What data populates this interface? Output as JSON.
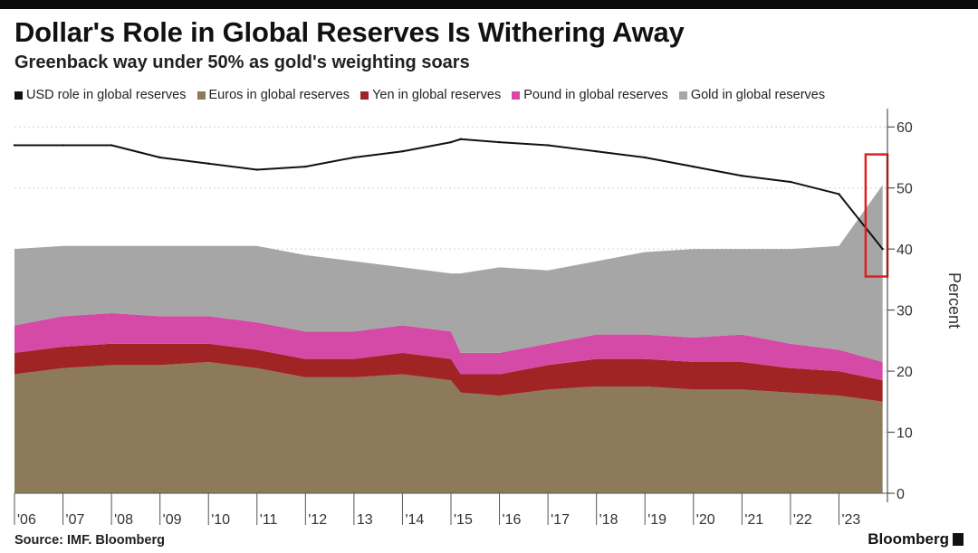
{
  "title": "Dollar's Role in Global Reserves Is Withering Away",
  "subtitle": "Greenback way under 50% as gold's weighting soars",
  "source": "Source: IMF. Bloomberg",
  "brand": "Bloomberg",
  "chart_data": {
    "type": "area",
    "ylabel": "Percent",
    "ylim": [
      0,
      63
    ],
    "yticks": [
      0,
      10,
      20,
      30,
      40,
      50,
      60
    ],
    "xlim": [
      2006.0,
      2024.0
    ],
    "x_tick_labels": [
      {
        "year": 2006.0,
        "label": "'06"
      },
      {
        "year": 2007.0,
        "label": "'07"
      },
      {
        "year": 2008.0,
        "label": "'08"
      },
      {
        "year": 2009.0,
        "label": "'09"
      },
      {
        "year": 2010.0,
        "label": "'10"
      },
      {
        "year": 2011.0,
        "label": "'11"
      },
      {
        "year": 2012.0,
        "label": "'12"
      },
      {
        "year": 2013.0,
        "label": "13"
      },
      {
        "year": 2014.0,
        "label": "'14"
      },
      {
        "year": 2015.0,
        "label": "'15"
      },
      {
        "year": 2016.0,
        "label": "'16"
      },
      {
        "year": 2017.0,
        "label": "'17"
      },
      {
        "year": 2018.0,
        "label": "'18"
      },
      {
        "year": 2019.0,
        "label": "'19"
      },
      {
        "year": 2020.0,
        "label": "'20"
      },
      {
        "year": 2021.0,
        "label": "'21"
      },
      {
        "year": 2022.0,
        "label": "'22"
      },
      {
        "year": 2023.0,
        "label": "'23"
      }
    ],
    "grid": true,
    "legend_position": "top",
    "x": [
      2006.0,
      2007.0,
      2008.0,
      2009.0,
      2010.0,
      2011.0,
      2012.0,
      2013.0,
      2014.0,
      2015.0,
      2015.2,
      2016.0,
      2017.0,
      2018.0,
      2019.0,
      2020.0,
      2021.0,
      2022.0,
      2023.0,
      2023.9
    ],
    "series": [
      {
        "name": "Euros in global reserves",
        "kind": "stacked_area",
        "color": "#8c7a5b",
        "values": [
          19.5,
          20.5,
          21,
          21,
          21.5,
          20.5,
          19,
          19,
          19.5,
          18.5,
          16.5,
          16,
          17,
          17.5,
          17.5,
          17,
          17,
          16.5,
          16,
          15
        ]
      },
      {
        "name": "Yen in global reserves",
        "kind": "stacked_area",
        "color": "#a02424",
        "values": [
          3.5,
          3.5,
          3.5,
          3.5,
          3,
          3,
          3,
          3,
          3.5,
          3.5,
          3,
          3.5,
          4,
          4.5,
          4.5,
          4.5,
          4.5,
          4,
          4,
          3.5
        ]
      },
      {
        "name": "Pound in global reserves",
        "kind": "stacked_area",
        "color": "#d44aa6",
        "values": [
          4.5,
          5,
          5,
          4.5,
          4.5,
          4.5,
          4.5,
          4.5,
          4.5,
          4.5,
          3.5,
          3.5,
          3.5,
          4,
          4,
          4,
          4.5,
          4,
          3.5,
          3
        ]
      },
      {
        "name": "Gold in global reserves",
        "kind": "stacked_area",
        "color": "#a6a6a6",
        "values": [
          12.5,
          11.5,
          11,
          11.5,
          11.5,
          12.5,
          12.5,
          11.5,
          9.5,
          9.5,
          13,
          14,
          12,
          12,
          13.5,
          14.5,
          14,
          15.5,
          17,
          29
        ]
      },
      {
        "name": "USD role in global reserves",
        "kind": "line",
        "color": "#111111",
        "values": [
          57,
          57,
          57,
          55,
          54,
          53,
          53.5,
          55,
          56,
          57.5,
          58,
          57.5,
          57,
          56,
          55,
          53.5,
          52,
          51,
          49,
          40
        ]
      }
    ],
    "highlight_box": {
      "x_range": [
        2023.55,
        2024.0
      ],
      "y_range": [
        35.5,
        55.5
      ],
      "color": "#e02020"
    }
  }
}
